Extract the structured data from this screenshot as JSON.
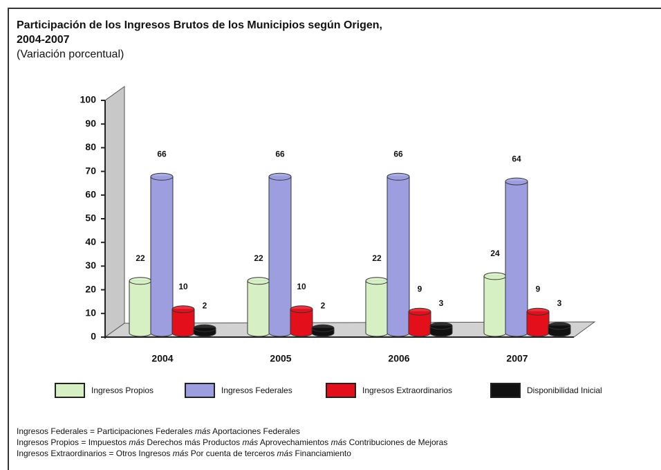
{
  "chart_data": {
    "type": "bar3d",
    "title": [
      "Participación de los Ingresos Brutos de los Municipios según Origen,",
      "2004-2007"
    ],
    "subtitle": "(Variación porcentual)",
    "categories": [
      "2004",
      "2005",
      "2006",
      "2007"
    ],
    "series": [
      {
        "name": "Ingresos Propios",
        "color": "#d6f0c4",
        "values": [
          22,
          22,
          22,
          24
        ]
      },
      {
        "name": "Ingresos Federales",
        "color": "#9d9ee0",
        "values": [
          66,
          66,
          66,
          64
        ]
      },
      {
        "name": "Ingresos Extraordinarios",
        "color": "#e3101c",
        "values": [
          10,
          10,
          9,
          9
        ]
      },
      {
        "name": "Disponibilidad Inicial",
        "color": "#111111",
        "values": [
          2,
          2,
          3,
          3
        ]
      }
    ],
    "ylim": [
      0,
      100
    ],
    "yticks": [
      0,
      10,
      20,
      30,
      40,
      50,
      60,
      70,
      80,
      90,
      100
    ],
    "notes": [
      [
        "Ingresos Federales = Participaciones Federales ",
        "más",
        " Aportaciones Federales"
      ],
      [
        "Ingresos Propios = Impuestos ",
        "más",
        " Derechos más Productos ",
        "más",
        " Aprovechamientos ",
        "más",
        " Contribuciones de Mejoras"
      ],
      [
        "Ingresos Extraordinarios = Otros Ingresos ",
        "más",
        " Por cuenta de terceros ",
        "más",
        " Financiamiento"
      ]
    ]
  }
}
